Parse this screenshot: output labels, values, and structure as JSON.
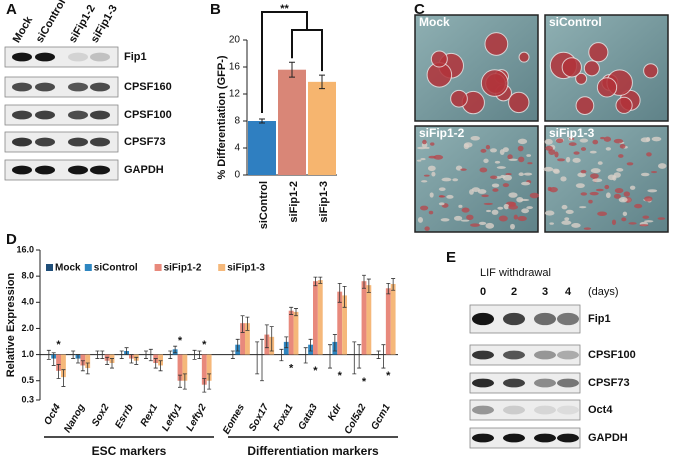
{
  "panel_A": {
    "letter": "A",
    "lanes": [
      "Mock",
      "siControl",
      "siFip1-2",
      "siFip1-3"
    ],
    "proteins": [
      "Fip1",
      "CPSF160",
      "CPSF100",
      "CPSF73",
      "GAPDH"
    ]
  },
  "panel_C": {
    "letter": "C",
    "images": [
      "Mock",
      "siControl",
      "siFip1-2",
      "siFip1-3"
    ]
  },
  "panel_E": {
    "letter": "E",
    "treatment": "LIF withdrawal",
    "days": [
      "0",
      "2",
      "3",
      "4"
    ],
    "unit": "(days)",
    "proteins": [
      "Fip1",
      "CPSF100",
      "CPSF73",
      "Oct4",
      "GAPDH"
    ]
  },
  "chart_data": [
    {
      "letter": "B",
      "type": "bar",
      "ylabel": "% Differentiation (GFP-)",
      "categories": [
        "siControl",
        "siFip1-2",
        "siFip1-3"
      ],
      "values": [
        8.0,
        15.6,
        13.8
      ],
      "errors": [
        0.3,
        1.1,
        1.0
      ],
      "colors": [
        "#2f7fc1",
        "#d98677",
        "#f6b56f"
      ],
      "ylim": [
        0,
        20
      ],
      "yticks": [
        0,
        4,
        8,
        12,
        16,
        20
      ],
      "significance": "**"
    },
    {
      "letter": "D",
      "type": "bar",
      "log_scale": true,
      "ylabel": "Relative Expression",
      "categories": [
        "Oct4",
        "Nanog",
        "Sox2",
        "Esrrb",
        "Rex1",
        "Lefty1",
        "Lefty2",
        "Eomes",
        "Sox17",
        "Foxa1",
        "Gata3",
        "Kdr",
        "Col5a2",
        "Gcm1"
      ],
      "series": [
        {
          "name": "Mock",
          "color": "#1f4e79",
          "values": [
            1.0,
            1.0,
            1.0,
            1.0,
            1.0,
            1.0,
            1.0,
            1.0,
            1.0,
            1.0,
            1.0,
            1.0,
            1.0,
            1.0
          ],
          "errors": [
            0.12,
            0.1,
            0.1,
            0.1,
            0.1,
            0.1,
            0.12,
            0.1,
            0.4,
            0.15,
            0.2,
            0.3,
            0.4,
            0.1
          ]
        },
        {
          "name": "siControl",
          "color": "#2e86c1",
          "values": [
            0.9,
            0.9,
            1.0,
            1.1,
            1.0,
            1.15,
            1.0,
            1.3,
            1.0,
            1.4,
            1.3,
            1.4,
            1.0,
            1.0
          ],
          "errors": [
            0.15,
            0.1,
            0.1,
            0.1,
            0.15,
            0.1,
            0.1,
            0.2,
            0.5,
            0.2,
            0.2,
            0.3,
            0.3,
            0.3
          ]
        },
        {
          "name": "siFip1-2",
          "color": "#e8897c",
          "values": [
            0.65,
            0.75,
            0.85,
            0.9,
            0.8,
            0.5,
            0.45,
            2.3,
            1.7,
            3.2,
            7.0,
            5.3,
            7.0,
            5.8
          ],
          "errors": [
            0.12,
            0.1,
            0.08,
            0.1,
            0.1,
            0.08,
            0.08,
            0.5,
            0.5,
            0.3,
            0.8,
            1.3,
            1.2,
            0.8
          ]
        },
        {
          "name": "siFip1-3",
          "color": "#f5b87a",
          "values": [
            0.55,
            0.7,
            0.8,
            0.85,
            0.75,
            0.5,
            0.5,
            2.3,
            1.6,
            3.1,
            7.2,
            4.8,
            6.3,
            6.5
          ],
          "errors": [
            0.12,
            0.1,
            0.1,
            0.08,
            0.1,
            0.1,
            0.1,
            0.4,
            0.5,
            0.3,
            0.6,
            1.3,
            1.1,
            1.0
          ]
        }
      ],
      "ylim": [
        0.3,
        16
      ],
      "yticks": [
        0.3,
        0.5,
        {
          "value": 1,
          "label": "1.0"
        },
        {
          "value": 2,
          "label": "2.0"
        },
        {
          "value": 4,
          "label": "4.0"
        },
        {
          "value": 8,
          "label": "8.0"
        },
        {
          "value": 16,
          "label": "16.0"
        }
      ],
      "legend": "top-left",
      "annotations": [
        {
          "text": "*",
          "category": "Oct4",
          "position": "above"
        },
        {
          "text": "*",
          "category": "Lefty1",
          "position": "above"
        },
        {
          "text": "*",
          "category": "Lefty2",
          "position": "above"
        },
        {
          "text": "*",
          "category": "Foxa1",
          "position": "below"
        },
        {
          "text": "*",
          "category": "Gata3",
          "position": "below"
        },
        {
          "text": "*",
          "category": "Kdr",
          "position": "below"
        },
        {
          "text": "*",
          "category": "Col5a2",
          "position": "below"
        },
        {
          "text": "*",
          "category": "Gcm1",
          "position": "below"
        }
      ],
      "groups": [
        {
          "label": "ESC markers",
          "from": "Oct4",
          "to": "Lefty2"
        },
        {
          "label": "Differentiation markers",
          "from": "Eomes",
          "to": "Gcm1"
        }
      ]
    }
  ]
}
